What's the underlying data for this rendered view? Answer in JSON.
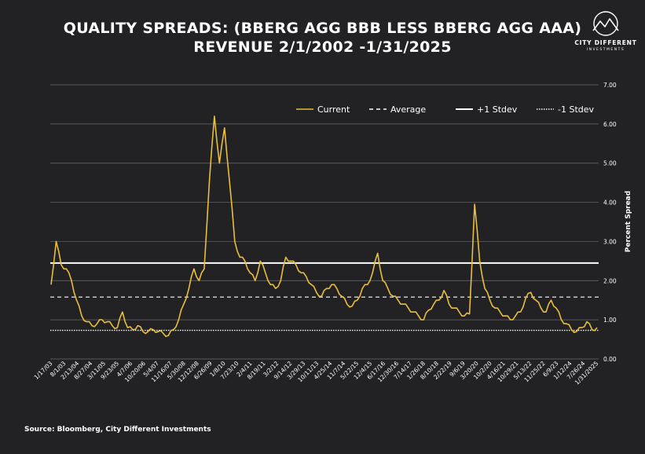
{
  "chart_data": {
    "type": "line",
    "title_line1": "QUALITY SPREADS: (BBERG AGG BBB LESS BBERG AGG AAA)",
    "title_line2": "REVENUE 2/1/2002 -1/31/2025",
    "ylabel": "Percent Spread",
    "ylim": [
      0,
      7
    ],
    "yticks": [
      "0.00",
      "1.00",
      "2.00",
      "3.00",
      "4.00",
      "5.00",
      "6.00",
      "7.00"
    ],
    "grid": "horizontal",
    "legend_position": "top-right",
    "x_tick_labels": [
      "1/17/03",
      "8/1/03",
      "2/13/04",
      "8/27/04",
      "3/11/05",
      "9/23/05",
      "4/7/06",
      "10/20/06",
      "5/4/07",
      "11/16/07",
      "5/30/08",
      "12/12/08",
      "6/26/09",
      "1/8/10",
      "7/23/10",
      "2/4/11",
      "8/19/11",
      "3/2/12",
      "9/14/12",
      "3/29/13",
      "10/11/13",
      "4/25/14",
      "11/7/14",
      "5/22/15",
      "12/4/15",
      "6/17/16",
      "12/30/16",
      "7/14/17",
      "1/26/18",
      "8/10/18",
      "2/22/19",
      "9/6/19",
      "3/20/20",
      "10/2/20",
      "4/16/21",
      "10/29/21",
      "5/13/22",
      "11/25/22",
      "6/9/23",
      "1/12/24",
      "7/26/24",
      "1/31/2025"
    ],
    "series": [
      {
        "name": "Current",
        "color": "#e8be3c",
        "values": [
          1.9,
          3.0,
          2.4,
          2.3,
          2.0,
          1.5,
          1.1,
          0.95,
          0.85,
          0.9,
          1.0,
          0.95,
          0.85,
          0.8,
          1.2,
          0.8,
          0.75,
          0.85,
          0.7,
          0.7,
          0.75,
          0.7,
          0.65,
          0.6,
          0.75,
          1.0,
          1.4,
          1.8,
          2.3,
          2.0,
          2.3,
          4.5,
          6.2,
          5.0,
          5.9,
          4.5,
          3.0,
          2.6,
          2.5,
          2.2,
          2.0,
          2.5,
          2.2,
          1.9,
          1.8,
          2.0,
          2.6,
          2.5,
          2.4,
          2.2,
          2.1,
          1.9,
          1.7,
          1.6,
          1.8,
          1.9,
          1.8,
          1.6,
          1.4,
          1.35,
          1.5,
          1.8,
          1.9,
          2.2,
          2.7,
          2.0,
          1.8,
          1.6,
          1.5,
          1.4,
          1.3,
          1.2,
          1.1,
          1.0,
          1.25,
          1.4,
          1.5,
          1.75,
          1.4,
          1.3,
          1.2,
          1.1,
          1.15,
          3.95,
          2.5,
          1.8,
          1.5,
          1.3,
          1.2,
          1.1,
          1.0,
          1.1,
          1.2,
          1.55,
          1.7,
          1.5,
          1.3,
          1.2,
          1.5,
          1.3,
          1.0,
          0.9,
          0.75,
          0.7,
          0.8,
          0.95,
          0.75,
          0.8
        ]
      },
      {
        "name": "Average",
        "color": "#ffffff",
        "value": 1.58
      },
      {
        "name": "+1 Stdev",
        "color": "#ffffff",
        "value": 2.45
      },
      {
        "name": "-1 Stdev",
        "color": "#ffffff",
        "value": 0.73
      }
    ],
    "source": "Source: Bloomberg, City Different Investments"
  },
  "logo": {
    "name": "CITY DIFFERENT",
    "sub": "INVESTMENTS"
  }
}
